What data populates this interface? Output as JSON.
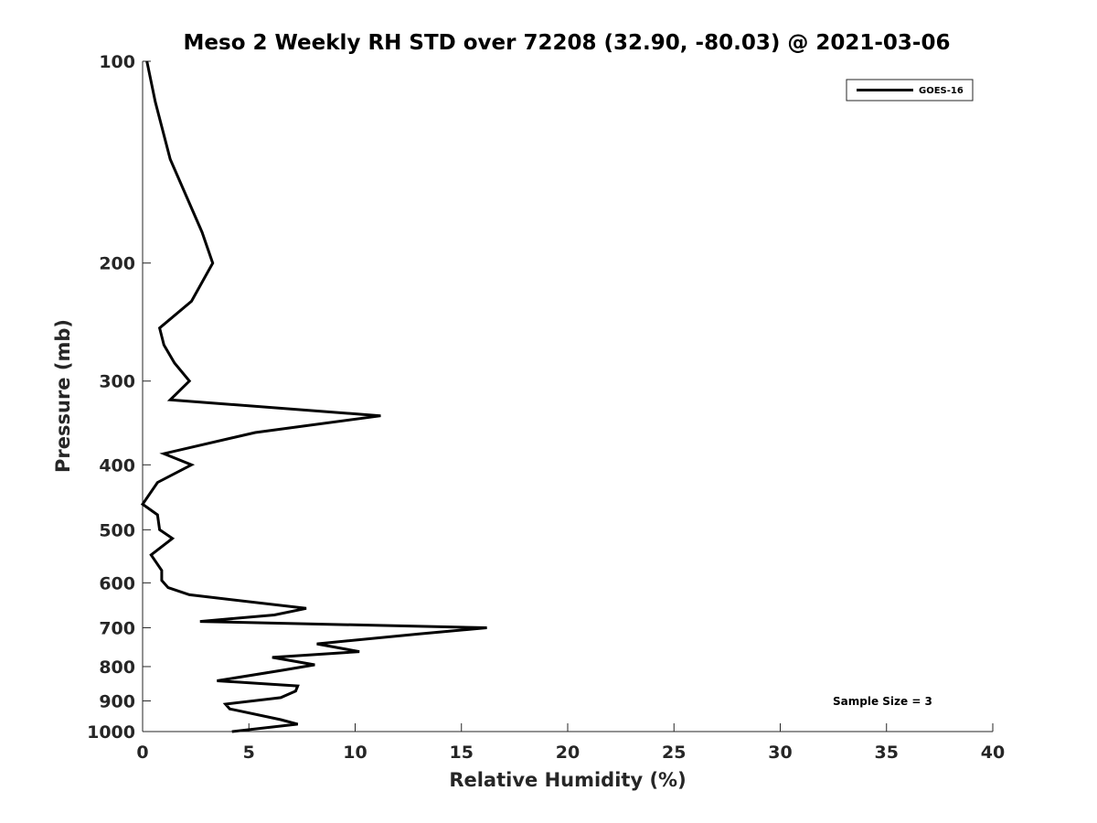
{
  "chart_data": {
    "type": "line",
    "title": "Meso 2 Weekly RH STD over 72208 (32.90, -80.03) @ 2021-03-06",
    "xlabel": "Relative Humidity (%)",
    "ylabel": "Pressure (mb)",
    "xlim": [
      0,
      40
    ],
    "ylim": [
      100,
      1000
    ],
    "y_scale": "log",
    "y_reversed": true,
    "grid": false,
    "legend_position": "top-right",
    "x_ticks": [
      "0",
      "5",
      "10",
      "15",
      "20",
      "25",
      "30",
      "35",
      "40"
    ],
    "y_ticks": [
      "100",
      "200",
      "300",
      "400",
      "500",
      "600",
      "700",
      "800",
      "900",
      "1000"
    ],
    "annotation": "Sample Size = 3",
    "colors": {
      "series": "#000000",
      "axes": "#262626"
    },
    "series": [
      {
        "name": "GOES-16",
        "x": [
          0.2,
          0.6,
          1.3,
          2.8,
          3.3,
          2.3,
          0.8,
          1.0,
          1.5,
          2.2,
          1.3,
          11.2,
          5.3,
          1.0,
          2.3,
          0.7,
          0.0,
          0.7,
          0.8,
          1.4,
          0.4,
          0.9,
          0.9,
          1.2,
          2.2,
          7.7,
          6.2,
          2.7,
          16.2,
          13.0,
          8.2,
          10.2,
          6.1,
          8.1,
          6.6,
          3.5,
          7.3,
          7.2,
          6.5,
          3.9,
          4.1,
          6.5,
          7.3,
          4.2
        ],
        "y": [
          100,
          115,
          140,
          180,
          200,
          228,
          250,
          265,
          282,
          300,
          320,
          338,
          358,
          385,
          400,
          425,
          458,
          475,
          500,
          515,
          545,
          575,
          595,
          610,
          625,
          655,
          670,
          685,
          700,
          715,
          740,
          760,
          775,
          795,
          810,
          840,
          855,
          870,
          890,
          910,
          925,
          960,
          975,
          1000
        ]
      }
    ]
  }
}
